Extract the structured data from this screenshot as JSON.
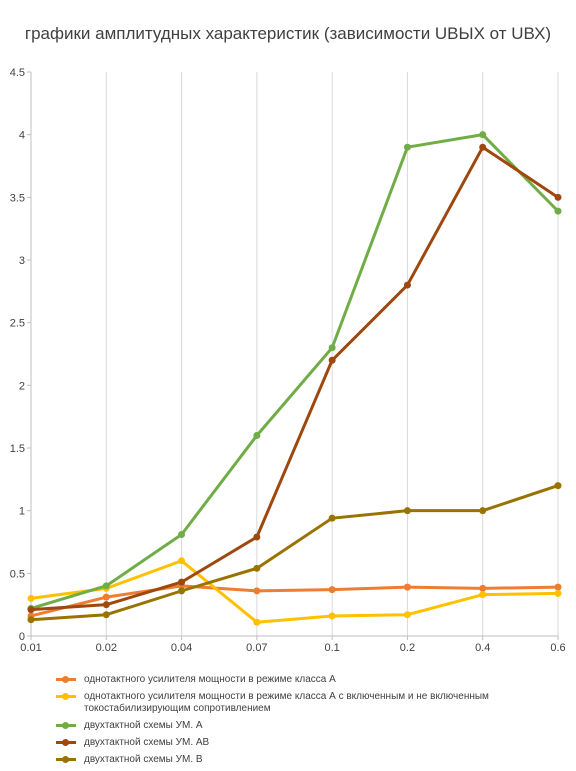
{
  "chart_data": {
    "type": "line",
    "title": "графики амплитудных характеристик (зависимости UВЫХ от UВХ)",
    "xlabel": "",
    "ylabel": "",
    "categories": [
      "0.01",
      "0.02",
      "0.04",
      "0.07",
      "0.1",
      "0.2",
      "0.4",
      "0.6"
    ],
    "y_ticks": [
      "0",
      "0.5",
      "1",
      "1.5",
      "2",
      "2.5",
      "3",
      "3.5",
      "4",
      "4.5"
    ],
    "ylim": [
      0,
      4.5
    ],
    "grid": "vertical",
    "legend_position": "bottom",
    "series": [
      {
        "name": "однотактного усилителя мощности в режиме класса А",
        "color": "#ED7D31",
        "values": [
          0.16,
          0.31,
          0.4,
          0.36,
          0.37,
          0.39,
          0.38,
          0.39
        ]
      },
      {
        "name": "однотактного усилителя мощности в режиме класса А с включенным и не включенным токостабилизирующим сопротивлением",
        "color": "#FFC000",
        "values": [
          0.3,
          0.38,
          0.6,
          0.11,
          0.16,
          0.17,
          0.33,
          0.34
        ]
      },
      {
        "name": "двухтактной схемы УМ. А",
        "color": "#70AD47",
        "values": [
          0.22,
          0.4,
          0.81,
          1.6,
          2.3,
          3.9,
          4.0,
          3.39
        ]
      },
      {
        "name": "двухтактной схемы УМ. АВ",
        "color": "#9E480E",
        "values": [
          0.21,
          0.25,
          0.43,
          0.79,
          2.2,
          2.8,
          3.9,
          3.5
        ]
      },
      {
        "name": "двухтактной схемы УМ. В",
        "color": "#997300",
        "values": [
          0.13,
          0.17,
          0.36,
          0.54,
          0.94,
          1.0,
          1.0,
          1.2
        ]
      }
    ]
  }
}
